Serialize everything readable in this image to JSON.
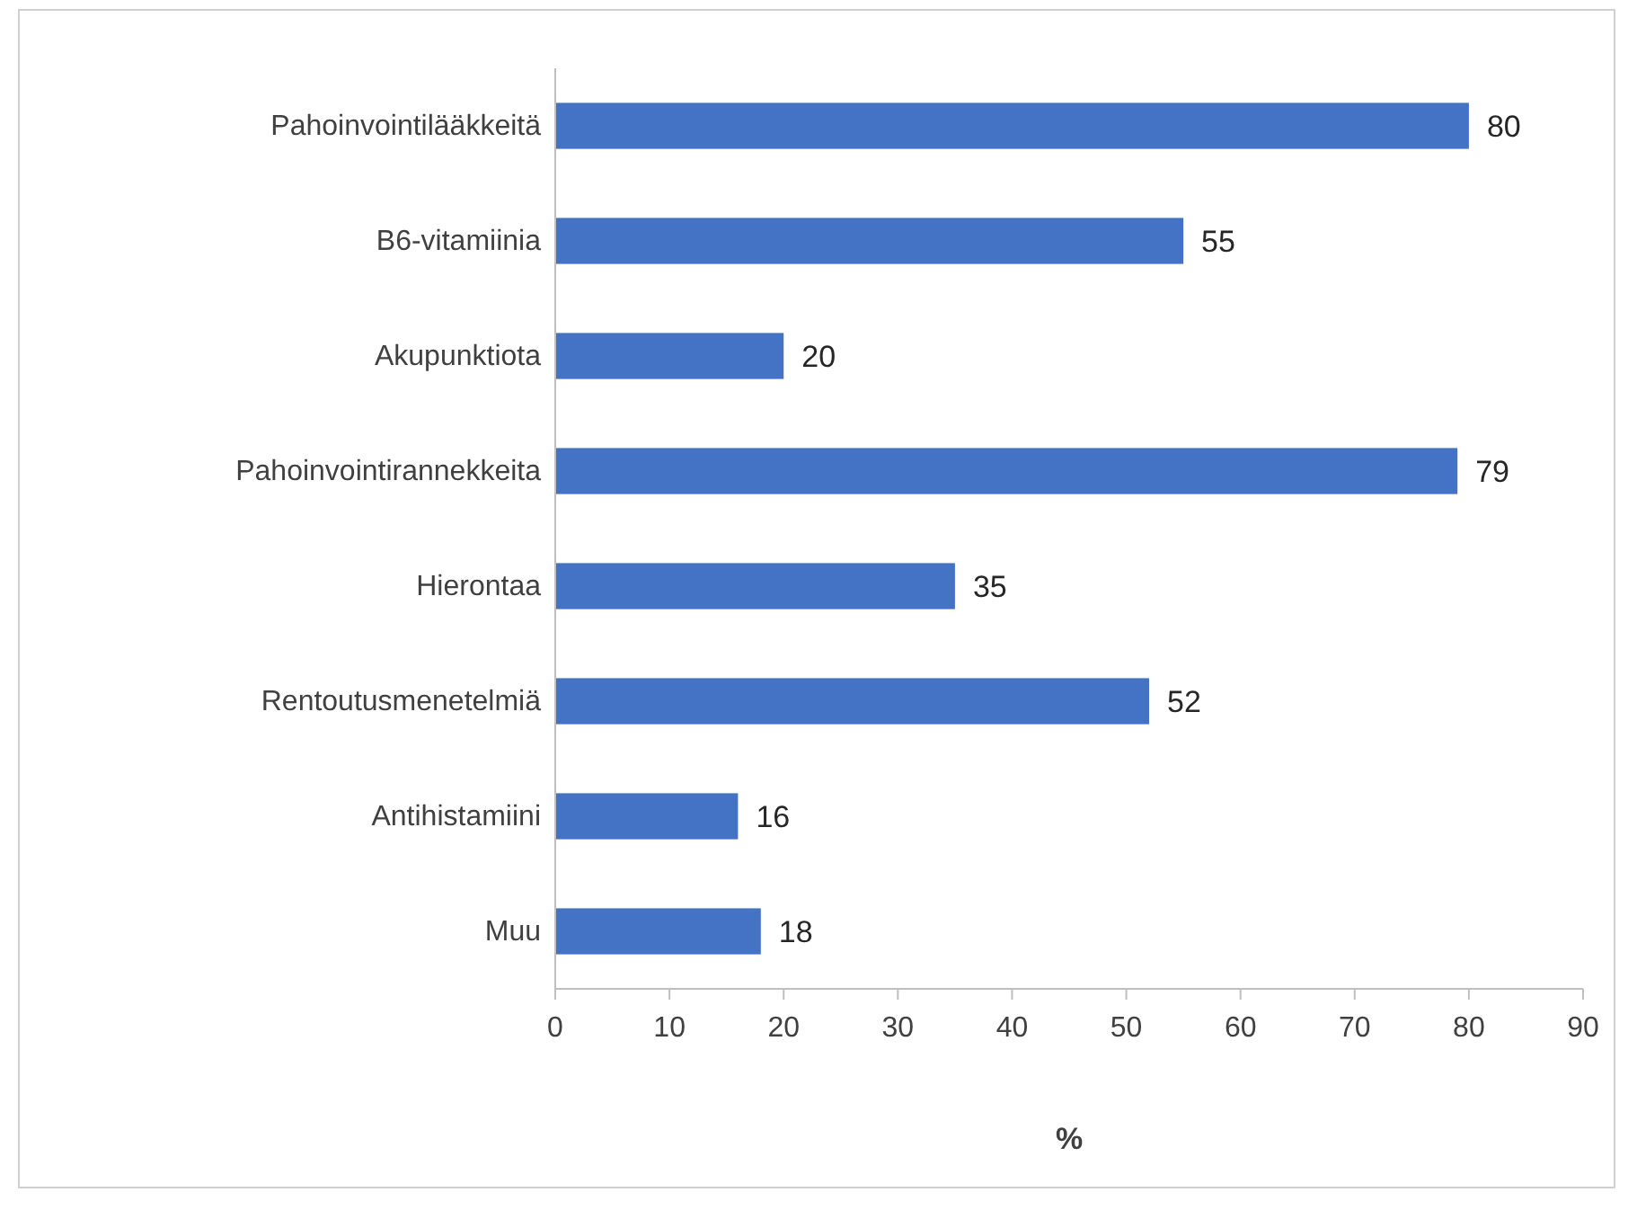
{
  "chart_data": {
    "type": "bar",
    "orientation": "horizontal",
    "xlabel": "%",
    "categories": [
      "Pahoinvointilääkkeitä",
      "B6-vitamiinia",
      "Akupunktiota",
      "Pahoinvointirannekkeita",
      "Hierontaa",
      "Rentoutusmenetelmiä",
      "Antihistamiini",
      "Muu"
    ],
    "values": [
      80,
      55,
      20,
      79,
      35,
      52,
      16,
      18
    ],
    "color": "#4472c4",
    "xlim": [
      0,
      90
    ],
    "xticks": [
      0,
      10,
      20,
      30,
      40,
      50,
      60,
      70,
      80,
      90
    ],
    "data_labels": true
  }
}
